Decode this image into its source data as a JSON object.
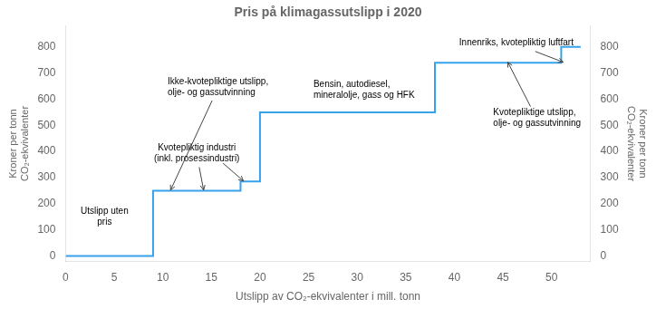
{
  "chart_data": {
    "type": "line",
    "title": "Pris på klimagassutslipp i 2020",
    "xlabel": "Utslipp av CO₂-ekvivalenter i mill. tonn",
    "ylabel": "Kroner per tonn\nCO₂-ekvivalenter",
    "y2label": "Kroner per tonn\nCO₂-ekvivalenter",
    "x": [
      0,
      9,
      9,
      13,
      13,
      18,
      18,
      20,
      20,
      38,
      38,
      51,
      51,
      53
    ],
    "values": [
      0,
      0,
      250,
      250,
      250,
      250,
      285,
      285,
      550,
      550,
      740,
      740,
      800,
      800
    ],
    "xlim": [
      0,
      54
    ],
    "xticks": [
      0,
      5,
      10,
      15,
      20,
      25,
      30,
      35,
      40,
      45,
      50
    ],
    "ylim": [
      -20,
      880
    ],
    "yticks": [
      0,
      100,
      200,
      300,
      400,
      500,
      600,
      700,
      800
    ],
    "y2lim": [
      -20,
      880
    ],
    "y2ticks": [
      0,
      100,
      200,
      300,
      400,
      500,
      600,
      700,
      800
    ],
    "grid": false,
    "annotations": [
      "Utslipp uten\npris",
      "Ikke-kvotepliktige utslipp,\nolje- og gassutvinning",
      "Kvotepliktig industri\n(inkl. prosessindustri)",
      "Bensin, autodiesel,\nmineralolje, gass og HFK",
      "Innenriks, kvotepliktig luftfart",
      "Kvotepliktige utslipp,\nolje- og gassutvinning"
    ]
  }
}
